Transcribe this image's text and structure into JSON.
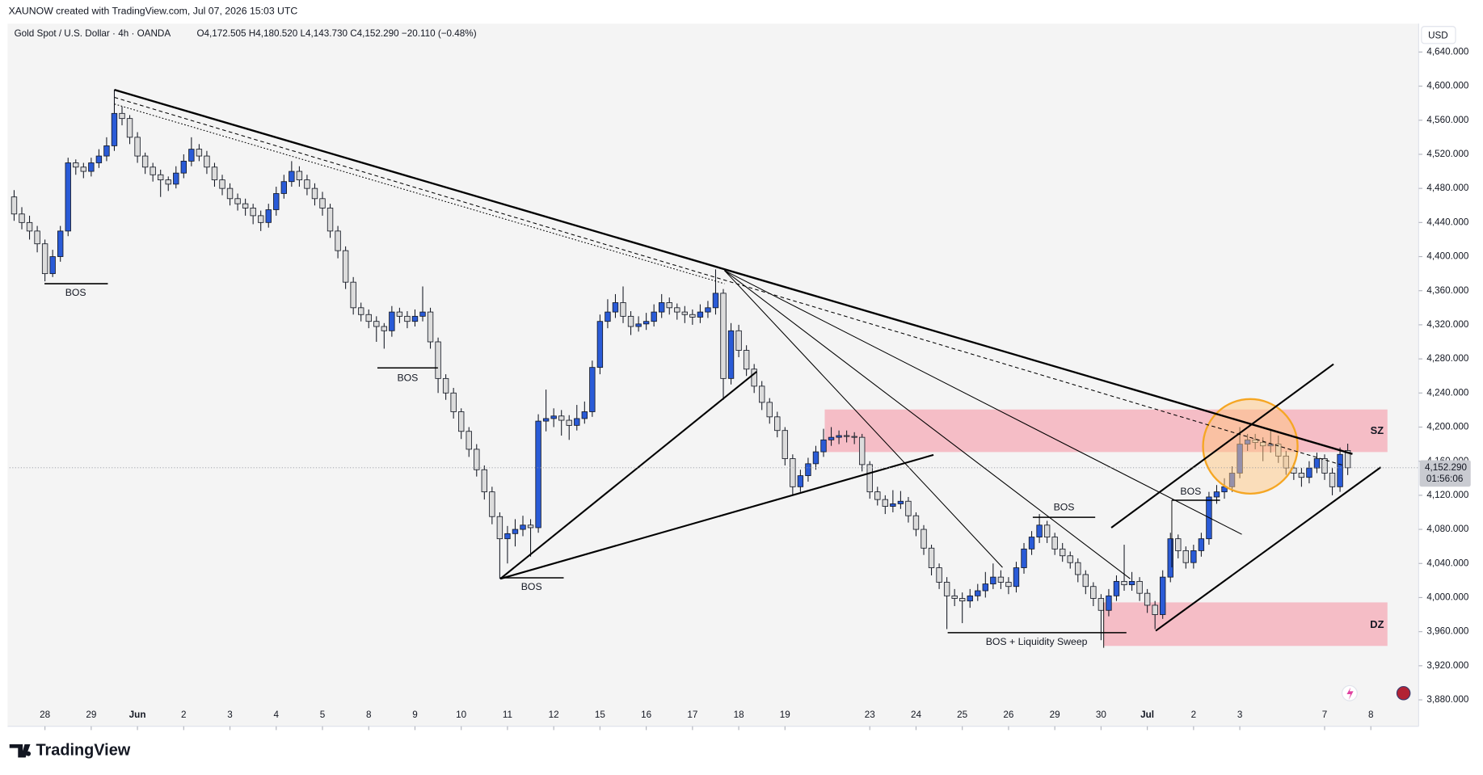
{
  "header": "XAUNOW created with TradingView.com, Jul 07, 2026 15:03 UTC",
  "footer": "TradingView",
  "chart_data": {
    "type": "candlestick",
    "title": "Gold Spot / U.S. Dollar · 4h · OANDA",
    "legend_values": "O4,172.505  H4,180.520  L4,143.730  C4,152.290  −20.110 (−0.48%)",
    "currency": "USD",
    "up_color": "#2a5bd7",
    "down_color": "#dcdcdc",
    "grid": false,
    "ylim": [
      3874.5,
      4673.3
    ],
    "yticks": [
      {
        "value": 4640,
        "label": "4,640.000"
      },
      {
        "value": 4600,
        "label": "4,600.000"
      },
      {
        "value": 4560,
        "label": "4,560.000"
      },
      {
        "value": 4520,
        "label": "4,520.000"
      },
      {
        "value": 4480,
        "label": "4,480.000"
      },
      {
        "value": 4440,
        "label": "4,440.000"
      },
      {
        "value": 4400,
        "label": "4,400.000"
      },
      {
        "value": 4360,
        "label": "4,360.000"
      },
      {
        "value": 4320,
        "label": "4,320.000"
      },
      {
        "value": 4280,
        "label": "4,280.000"
      },
      {
        "value": 4240,
        "label": "4,240.000"
      },
      {
        "value": 4200,
        "label": "4,200.000"
      },
      {
        "value": 4160,
        "label": "4,160.000"
      },
      {
        "value": 4120,
        "label": "4,120.000"
      },
      {
        "value": 4080,
        "label": "4,080.000"
      },
      {
        "value": 4040,
        "label": "4,040.000"
      },
      {
        "value": 4000,
        "label": "4,000.000"
      },
      {
        "value": 3960,
        "label": "3,960.000"
      },
      {
        "value": 3920,
        "label": "3,920.000"
      },
      {
        "value": 3880,
        "label": "3,880.000"
      }
    ],
    "xlim": [
      -0.6,
      182.2
    ],
    "xticks": [
      {
        "value": 4,
        "label": "28"
      },
      {
        "value": 10,
        "label": "29"
      },
      {
        "value": 16,
        "label": "Jun"
      },
      {
        "value": 22,
        "label": "2"
      },
      {
        "value": 28,
        "label": "3"
      },
      {
        "value": 34,
        "label": "4"
      },
      {
        "value": 40,
        "label": "5"
      },
      {
        "value": 46,
        "label": "8"
      },
      {
        "value": 52,
        "label": "9"
      },
      {
        "value": 58,
        "label": "10"
      },
      {
        "value": 64,
        "label": "11"
      },
      {
        "value": 70,
        "label": "12"
      },
      {
        "value": 76,
        "label": "15"
      },
      {
        "value": 82,
        "label": "16"
      },
      {
        "value": 88,
        "label": "17"
      },
      {
        "value": 94,
        "label": "18"
      },
      {
        "value": 100,
        "label": "19"
      },
      {
        "value": 111,
        "label": "23"
      },
      {
        "value": 117,
        "label": "24"
      },
      {
        "value": 123,
        "label": "25"
      },
      {
        "value": 129,
        "label": "26"
      },
      {
        "value": 135,
        "label": "29"
      },
      {
        "value": 141,
        "label": "30"
      },
      {
        "value": 147,
        "label": "Jul"
      },
      {
        "value": 153,
        "label": "2"
      },
      {
        "value": 159,
        "label": "3"
      },
      {
        "value": 170,
        "label": "7"
      },
      {
        "value": 176,
        "label": "8"
      }
    ],
    "last_price": {
      "value": 4152.29,
      "label": "4,152.290"
    },
    "countdown": "01:56:06",
    "annotations": [
      "BOS",
      "BOS",
      "BOS",
      "BOS",
      "BOS + Liquidity Sweep",
      "BOS",
      "SZ",
      "DZ"
    ],
    "candles": [
      [
        4470,
        4478,
        4442,
        4450
      ],
      [
        4450,
        4458,
        4432,
        4440
      ],
      [
        4440,
        4448,
        4420,
        4430
      ],
      [
        4430,
        4436,
        4405,
        4415
      ],
      [
        4415,
        4420,
        4371,
        4380
      ],
      [
        4380,
        4408,
        4376,
        4400
      ],
      [
        4400,
        4436,
        4394,
        4430
      ],
      [
        4430,
        4516,
        4424,
        4510
      ],
      [
        4510,
        4514,
        4496,
        4505
      ],
      [
        4505,
        4510,
        4492,
        4500
      ],
      [
        4500,
        4516,
        4494,
        4510
      ],
      [
        4510,
        4526,
        4504,
        4518
      ],
      [
        4518,
        4540,
        4512,
        4530
      ],
      [
        4530,
        4596,
        4524,
        4568
      ],
      [
        4568,
        4576,
        4554,
        4562
      ],
      [
        4562,
        4566,
        4532,
        4540
      ],
      [
        4540,
        4546,
        4510,
        4518
      ],
      [
        4518,
        4522,
        4497,
        4505
      ],
      [
        4505,
        4510,
        4488,
        4496
      ],
      [
        4496,
        4502,
        4470,
        4490
      ],
      [
        4490,
        4494,
        4477,
        4485
      ],
      [
        4485,
        4506,
        4480,
        4498
      ],
      [
        4498,
        4520,
        4492,
        4512
      ],
      [
        4512,
        4540,
        4506,
        4526
      ],
      [
        4526,
        4532,
        4512,
        4518
      ],
      [
        4518,
        4524,
        4497,
        4505
      ],
      [
        4505,
        4510,
        4482,
        4490
      ],
      [
        4490,
        4496,
        4472,
        4480
      ],
      [
        4480,
        4486,
        4460,
        4468
      ],
      [
        4468,
        4474,
        4454,
        4462
      ],
      [
        4462,
        4468,
        4448,
        4457
      ],
      [
        4457,
        4462,
        4438,
        4448
      ],
      [
        4448,
        4454,
        4430,
        4440
      ],
      [
        4440,
        4462,
        4434,
        4455
      ],
      [
        4455,
        4482,
        4448,
        4474
      ],
      [
        4474,
        4496,
        4468,
        4488
      ],
      [
        4488,
        4512,
        4482,
        4500
      ],
      [
        4500,
        4506,
        4482,
        4490
      ],
      [
        4490,
        4496,
        4472,
        4480
      ],
      [
        4480,
        4486,
        4460,
        4468
      ],
      [
        4468,
        4476,
        4448,
        4457
      ],
      [
        4457,
        4462,
        4422,
        4430
      ],
      [
        4430,
        4436,
        4398,
        4407
      ],
      [
        4407,
        4412,
        4362,
        4370
      ],
      [
        4370,
        4376,
        4332,
        4340
      ],
      [
        4340,
        4346,
        4324,
        4332
      ],
      [
        4332,
        4338,
        4316,
        4324
      ],
      [
        4324,
        4330,
        4300,
        4318
      ],
      [
        4318,
        4322,
        4292,
        4313
      ],
      [
        4313,
        4342,
        4306,
        4335
      ],
      [
        4335,
        4340,
        4322,
        4330
      ],
      [
        4330,
        4336,
        4316,
        4324
      ],
      [
        4324,
        4338,
        4318,
        4330
      ],
      [
        4330,
        4365,
        4324,
        4335
      ],
      [
        4335,
        4340,
        4292,
        4300
      ],
      [
        4300,
        4305,
        4240,
        4257
      ],
      [
        4257,
        4262,
        4232,
        4240
      ],
      [
        4240,
        4246,
        4210,
        4218
      ],
      [
        4218,
        4222,
        4186,
        4195
      ],
      [
        4195,
        4200,
        4165,
        4174
      ],
      [
        4174,
        4180,
        4142,
        4150
      ],
      [
        4150,
        4155,
        4115,
        4124
      ],
      [
        4124,
        4130,
        4086,
        4095
      ],
      [
        4095,
        4100,
        4022,
        4069
      ],
      [
        4069,
        4084,
        4040,
        4075
      ],
      [
        4075,
        4092,
        4060,
        4080
      ],
      [
        4080,
        4096,
        4072,
        4085
      ],
      [
        4085,
        4092,
        4048,
        4082
      ],
      [
        4082,
        4215,
        4076,
        4207
      ],
      [
        4207,
        4244,
        4195,
        4210
      ],
      [
        4210,
        4222,
        4200,
        4213
      ],
      [
        4213,
        4220,
        4190,
        4208
      ],
      [
        4208,
        4214,
        4185,
        4202
      ],
      [
        4202,
        4226,
        4196,
        4210
      ],
      [
        4210,
        4230,
        4204,
        4218
      ],
      [
        4218,
        4278,
        4212,
        4270
      ],
      [
        4270,
        4332,
        4262,
        4324
      ],
      [
        4324,
        4350,
        4316,
        4335
      ],
      [
        4335,
        4356,
        4328,
        4346
      ],
      [
        4346,
        4365,
        4322,
        4330
      ],
      [
        4330,
        4336,
        4308,
        4318
      ],
      [
        4318,
        4330,
        4312,
        4321
      ],
      [
        4321,
        4334,
        4314,
        4324
      ],
      [
        4324,
        4344,
        4318,
        4335
      ],
      [
        4335,
        4356,
        4328,
        4346
      ],
      [
        4346,
        4352,
        4332,
        4340
      ],
      [
        4340,
        4345,
        4326,
        4335
      ],
      [
        4335,
        4342,
        4322,
        4332
      ],
      [
        4332,
        4338,
        4320,
        4329
      ],
      [
        4329,
        4344,
        4322,
        4335
      ],
      [
        4335,
        4348,
        4328,
        4340
      ],
      [
        4340,
        4385,
        4332,
        4357
      ],
      [
        4357,
        4362,
        4232,
        4257
      ],
      [
        4257,
        4322,
        4250,
        4313
      ],
      [
        4313,
        4320,
        4282,
        4290
      ],
      [
        4290,
        4296,
        4260,
        4268
      ],
      [
        4268,
        4274,
        4240,
        4248
      ],
      [
        4248,
        4254,
        4220,
        4229
      ],
      [
        4229,
        4234,
        4204,
        4212
      ],
      [
        4212,
        4218,
        4188,
        4196
      ],
      [
        4196,
        4200,
        4155,
        4163
      ],
      [
        4163,
        4168,
        4120,
        4130
      ],
      [
        4130,
        4150,
        4124,
        4143
      ],
      [
        4143,
        4164,
        4136,
        4157
      ],
      [
        4157,
        4178,
        4150,
        4171
      ],
      [
        4171,
        4198,
        4165,
        4185
      ],
      [
        4185,
        4200,
        4178,
        4188
      ],
      [
        4188,
        4196,
        4180,
        4190
      ],
      [
        4190,
        4196,
        4182,
        4189
      ],
      [
        4189,
        4194,
        4180,
        4188
      ],
      [
        4188,
        4192,
        4148,
        4156
      ],
      [
        4156,
        4160,
        4116,
        4124
      ],
      [
        4124,
        4130,
        4108,
        4115
      ],
      [
        4115,
        4120,
        4098,
        4107
      ],
      [
        4107,
        4126,
        4100,
        4110
      ],
      [
        4110,
        4125,
        4104,
        4113
      ],
      [
        4113,
        4118,
        4088,
        4096
      ],
      [
        4096,
        4100,
        4072,
        4080
      ],
      [
        4080,
        4085,
        4050,
        4058
      ],
      [
        4058,
        4062,
        4026,
        4035
      ],
      [
        4035,
        4040,
        4010,
        4018
      ],
      [
        4018,
        4024,
        3963,
        4002
      ],
      [
        4002,
        4010,
        3990,
        3999
      ],
      [
        3999,
        4006,
        3970,
        3996
      ],
      [
        3996,
        4010,
        3988,
        4002
      ],
      [
        4002,
        4016,
        3996,
        4008
      ],
      [
        4008,
        4030,
        4000,
        4016
      ],
      [
        4016,
        4040,
        4010,
        4024
      ],
      [
        4024,
        4032,
        4010,
        4018
      ],
      [
        4018,
        4024,
        4004,
        4013
      ],
      [
        4013,
        4042,
        4006,
        4035
      ],
      [
        4035,
        4064,
        4028,
        4057
      ],
      [
        4057,
        4078,
        4050,
        4071
      ],
      [
        4071,
        4098,
        4064,
        4085
      ],
      [
        4085,
        4090,
        4064,
        4071
      ],
      [
        4071,
        4076,
        4050,
        4057
      ],
      [
        4057,
        4064,
        4042,
        4049
      ],
      [
        4049,
        4054,
        4034,
        4041
      ],
      [
        4041,
        4046,
        4018,
        4027
      ],
      [
        4027,
        4032,
        4004,
        4013
      ],
      [
        4013,
        4018,
        3990,
        3999
      ],
      [
        3999,
        4004,
        3950,
        3985
      ],
      [
        3985,
        4010,
        3978,
        4002
      ],
      [
        4002,
        4026,
        3996,
        4019
      ],
      [
        4019,
        4062,
        4008,
        4015
      ],
      [
        4015,
        4030,
        4008,
        4019
      ],
      [
        4019,
        4024,
        3996,
        4005
      ],
      [
        4005,
        4010,
        3982,
        3991
      ],
      [
        3991,
        3996,
        3963,
        3980
      ],
      [
        3980,
        4032,
        3975,
        4024
      ],
      [
        4024,
        4076,
        4018,
        4069
      ],
      [
        4069,
        4074,
        4046,
        4055
      ],
      [
        4055,
        4060,
        4034,
        4041
      ],
      [
        4041,
        4062,
        4034,
        4055
      ],
      [
        4055,
        4076,
        4048,
        4069
      ],
      [
        4069,
        4124,
        4062,
        4118
      ],
      [
        4118,
        4132,
        4110,
        4124
      ],
      [
        4124,
        4140,
        4116,
        4130
      ],
      [
        4130,
        4154,
        4124,
        4146
      ],
      [
        4146,
        4200,
        4140,
        4180
      ],
      [
        4180,
        4192,
        4172,
        4185
      ],
      [
        4185,
        4192,
        4174,
        4182
      ],
      [
        4182,
        4188,
        4160,
        4178
      ],
      [
        4178,
        4198,
        4170,
        4180
      ],
      [
        4180,
        4190,
        4158,
        4166
      ],
      [
        4166,
        4172,
        4144,
        4152
      ],
      [
        4152,
        4158,
        4138,
        4146
      ],
      [
        4146,
        4152,
        4130,
        4141
      ],
      [
        4141,
        4160,
        4134,
        4152
      ],
      [
        4152,
        4170,
        4146,
        4163
      ],
      [
        4163,
        4168,
        4138,
        4146
      ],
      [
        4146,
        4152,
        4120,
        4130
      ],
      [
        4130,
        4176,
        4124,
        4168
      ],
      [
        4172.505,
        4180.52,
        4143.73,
        4152.29
      ]
    ]
  }
}
